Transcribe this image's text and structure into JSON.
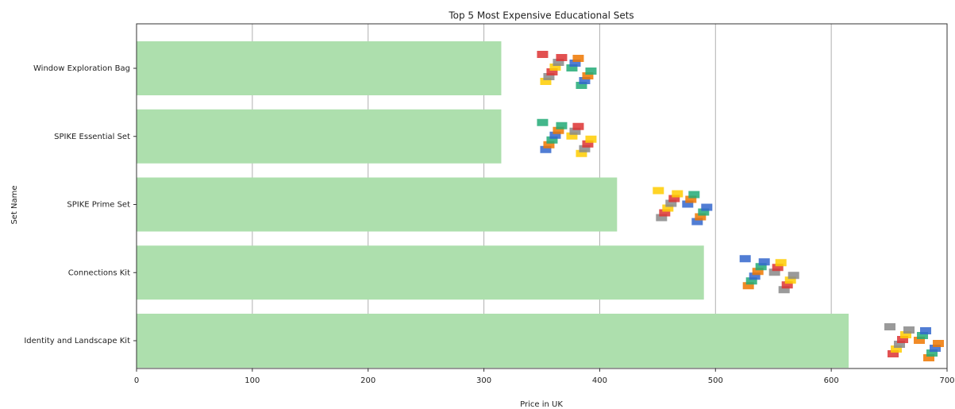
{
  "chart_data": {
    "type": "barh",
    "title": "Top 5 Most Expensive Educational Sets",
    "x_label": "Price in UK",
    "y_label": "Set Name",
    "categories": [
      "Window Exploration Bag",
      "SPIKE Essential Set",
      "SPIKE Prime Set",
      "Connections Kit",
      "Identity and Landscape Kit"
    ],
    "values": [
      315,
      315,
      415,
      490,
      615
    ],
    "color": "#addfad",
    "xlim": [
      0,
      700
    ],
    "xticks": [
      0,
      100,
      200,
      300,
      400,
      500,
      600,
      700
    ],
    "grid": true
  }
}
